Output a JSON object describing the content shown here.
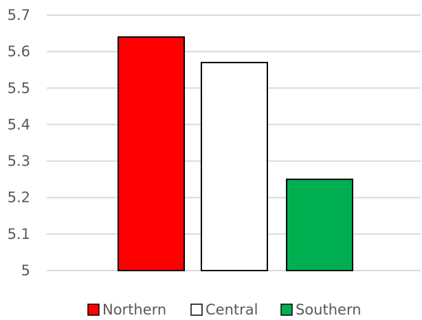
{
  "chart_data": {
    "type": "bar",
    "categories": [
      "Northern",
      "Central",
      "Southern"
    ],
    "values": [
      5.64,
      5.57,
      5.25
    ],
    "colors": [
      "#ff0000",
      "#ffffff",
      "#00b050"
    ],
    "ylim": [
      5,
      5.7
    ],
    "yticks": [
      "5",
      "5.1",
      "5.2",
      "5.3",
      "5.4",
      "5.5",
      "5.6",
      "5.7"
    ],
    "ytick_values": [
      5,
      5.1,
      5.2,
      5.3,
      5.4,
      5.5,
      5.6,
      5.7
    ],
    "grid": true,
    "legend_position": "bottom",
    "legend": [
      {
        "label": "Northern",
        "color": "#ff0000"
      },
      {
        "label": "Central",
        "color": "#ffffff"
      },
      {
        "label": "Southern",
        "color": "#00b050"
      }
    ]
  }
}
